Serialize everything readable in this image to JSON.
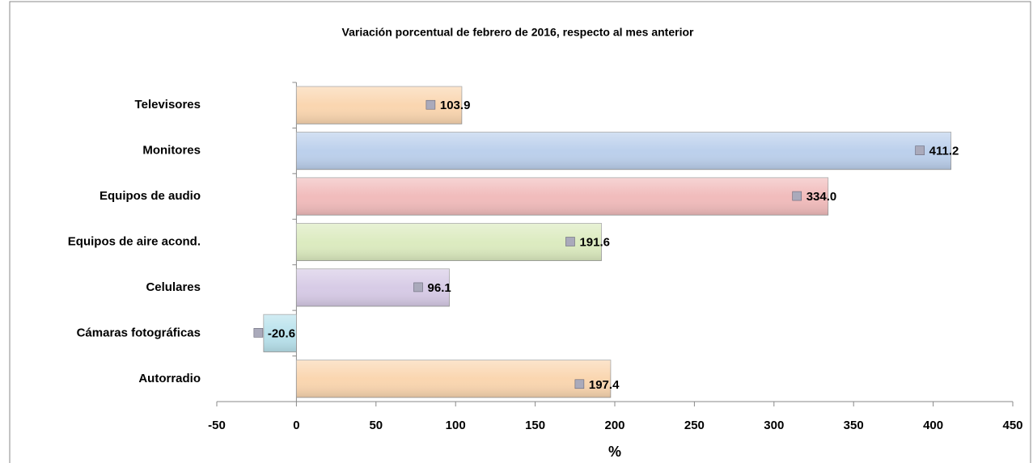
{
  "chart_data": {
    "type": "barh",
    "title": "Variación porcentual de febrero de 2016, respecto al mes anterior",
    "x_label": "%",
    "categories": [
      "Televisores",
      "Monitores",
      "Equipos de audio",
      "Equipos de aire acond.",
      "Celulares",
      "Cámaras fotográficas",
      "Autorradio"
    ],
    "values": [
      103.9,
      411.2,
      334.0,
      191.6,
      96.1,
      -20.6,
      197.4
    ],
    "value_labels": [
      "103.9",
      "411.2",
      "334.0",
      "191.6",
      "96.1",
      "-20.6",
      "197.4"
    ],
    "colors": [
      "#fad6b0",
      "#bcd0ec",
      "#f1bcbc",
      "#dcebc0",
      "#d7cbe6",
      "#b9e2ec",
      "#fad6b0"
    ],
    "xlim": [
      -50,
      450
    ],
    "xticks": [
      -50,
      0,
      50,
      100,
      150,
      200,
      250,
      300,
      350,
      400,
      450
    ],
    "grid": false
  }
}
